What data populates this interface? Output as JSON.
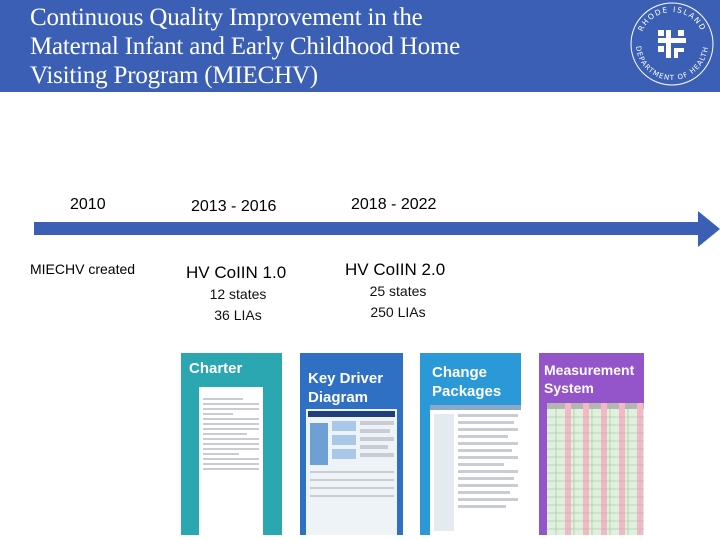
{
  "header": {
    "title_lines": [
      "Continuous Quality Improvement in the",
      "Maternal Infant and Early Childhood Home",
      "Visiting Program (MIECHV)"
    ],
    "seal": {
      "top_text": "RHODE ISLAND",
      "bottom_text": "DEPARTMENT OF HEALTH"
    }
  },
  "timeline": {
    "milestones": [
      {
        "year": "2010",
        "event": "MIECHV created"
      },
      {
        "year": "2013 - 2016",
        "event": "HV CoIIN 1.0",
        "details": [
          "12 states",
          "36 LIAs"
        ]
      },
      {
        "year": "2018 - 2022",
        "event": "HV CoIIN 2.0",
        "details": [
          "25 states",
          "250 LIAs"
        ]
      }
    ]
  },
  "cards": [
    {
      "label": "Charter",
      "color": "#2aa7b0"
    },
    {
      "label": "Key Driver Diagram",
      "label_lines": [
        "Key Driver",
        "Diagram"
      ],
      "color": "#2f6fc4"
    },
    {
      "label": "Change Packages",
      "label_lines": [
        "Change",
        "Packages"
      ],
      "color": "#2b98d8"
    },
    {
      "label": "Measurement System",
      "label_lines": [
        "Measurement",
        "System"
      ],
      "color": "#9355c9"
    }
  ]
}
